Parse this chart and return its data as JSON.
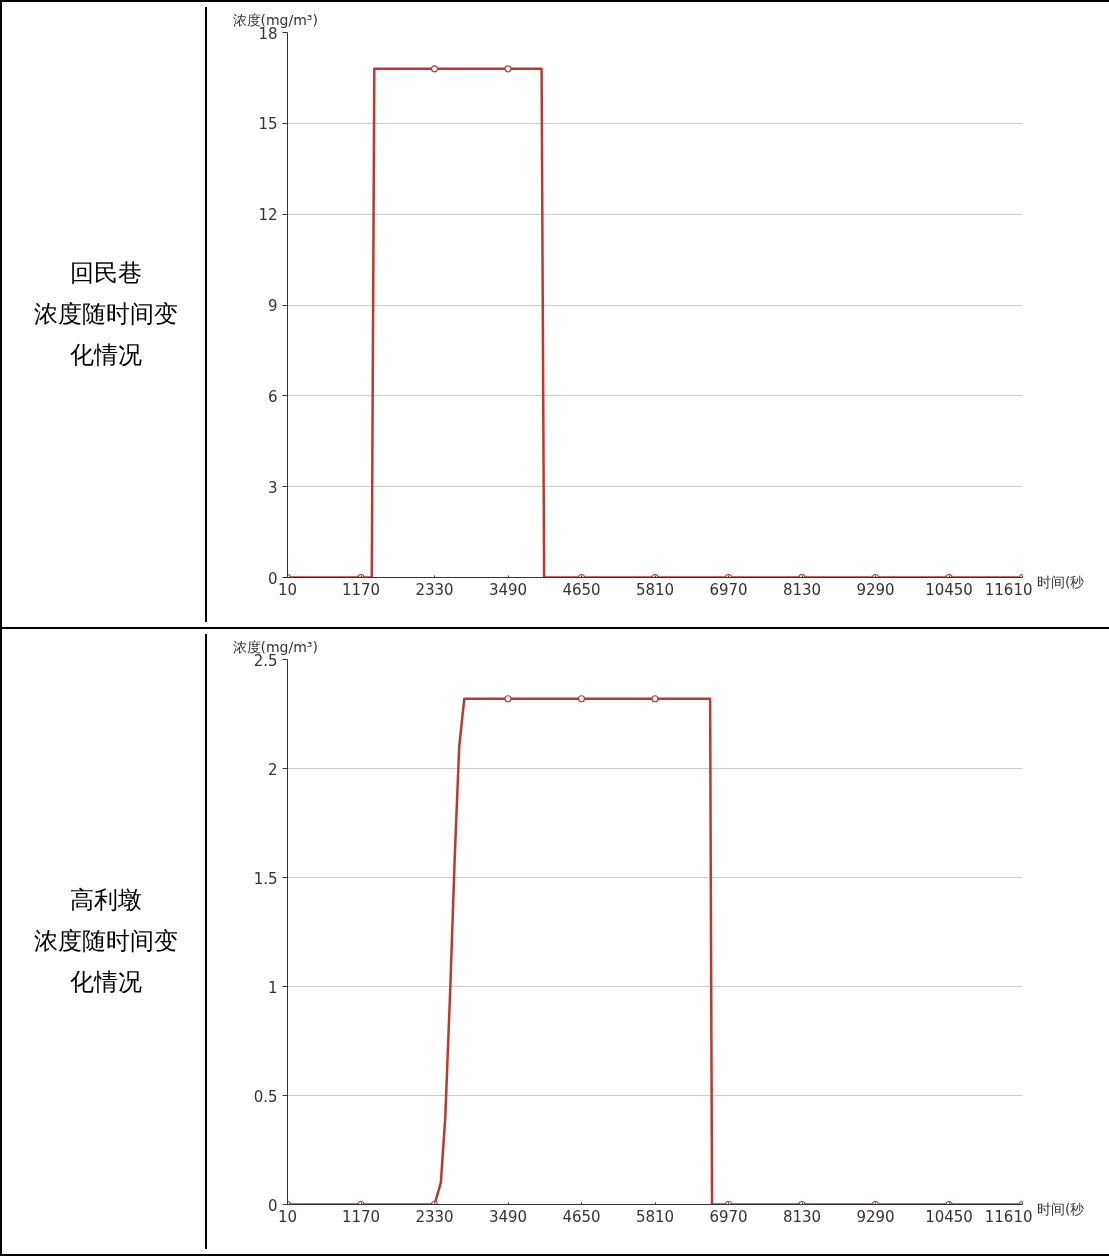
{
  "chart_data": [
    {
      "type": "line",
      "title": "回民巷",
      "subtitle": "浓度随时间变化情况",
      "ylabel": "浓度(mg/m³)",
      "xlabel": "时间(秒",
      "xlim": [
        10,
        11610
      ],
      "xticks": [
        10,
        1170,
        2330,
        3490,
        4650,
        5810,
        6970,
        8130,
        9290,
        10450,
        11610
      ],
      "ylim": [
        0,
        18
      ],
      "yticks": [
        0,
        3,
        6,
        9,
        12,
        15,
        18
      ],
      "grid": "y",
      "series": [
        {
          "type": "line",
          "color": "#c23531",
          "marker": "none",
          "x": [
            10,
            1170,
            1340,
            1380,
            2330,
            3490,
            4020,
            4060,
            4650,
            5810,
            6970,
            8130,
            9290,
            10450,
            11610
          ],
          "values": [
            0,
            0,
            0,
            16.8,
            16.8,
            16.8,
            16.8,
            0,
            0,
            0,
            0,
            0,
            0,
            0,
            0
          ]
        },
        {
          "type": "scatter",
          "color": "#c23531",
          "marker": "circle",
          "x": [
            10,
            1170,
            2330,
            3490,
            4650,
            5810,
            6970,
            8130,
            9290,
            10450,
            11610
          ],
          "values": [
            0,
            0,
            16.8,
            16.8,
            0,
            0,
            0,
            0,
            0,
            0,
            0
          ]
        }
      ]
    },
    {
      "type": "line",
      "title": "高利墩",
      "subtitle": "浓度随时间变化情况",
      "ylabel": "浓度(mg/m³)",
      "xlabel": "时间(秒",
      "xlim": [
        10,
        11610
      ],
      "xticks": [
        10,
        1170,
        2330,
        3490,
        4650,
        5810,
        6970,
        8130,
        9290,
        10450,
        11610
      ],
      "ylim": [
        0,
        2.5
      ],
      "yticks": [
        0,
        0.5,
        1,
        1.5,
        2,
        2.5
      ],
      "grid": "y",
      "series": [
        {
          "type": "line",
          "color": "#c23531",
          "marker": "none",
          "x": [
            10,
            1170,
            2330,
            2430,
            2500,
            2580,
            2650,
            2720,
            2800,
            3490,
            4650,
            5810,
            6680,
            6710,
            6970,
            8130,
            9290,
            10450,
            11610
          ],
          "values": [
            0,
            0,
            0,
            0.1,
            0.4,
            1.0,
            1.6,
            2.1,
            2.32,
            2.32,
            2.32,
            2.32,
            2.32,
            0,
            0,
            0,
            0,
            0,
            0
          ]
        },
        {
          "type": "scatter",
          "color": "#c23531",
          "marker": "circle",
          "x": [
            10,
            1170,
            2330,
            3490,
            4650,
            5810,
            6970,
            8130,
            9290,
            10450,
            11610
          ],
          "values": [
            0,
            0,
            0,
            2.32,
            2.32,
            2.32,
            0,
            0,
            0,
            0,
            0
          ]
        }
      ]
    }
  ]
}
